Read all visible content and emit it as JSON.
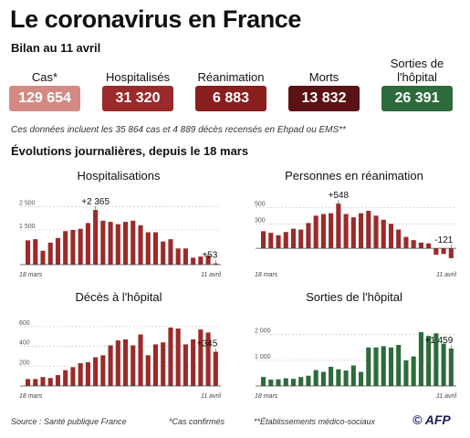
{
  "title": "Le coronavirus en France",
  "subtitle": "Bilan au 11 avril",
  "stats": [
    {
      "label": "Cas*",
      "value": "129 654",
      "color": "#d48a84"
    },
    {
      "label": "Hospitalisés",
      "value": "31 320",
      "color": "#9c2a2a"
    },
    {
      "label": "Réanimation",
      "value": "6 883",
      "color": "#8a1d1d"
    },
    {
      "label": "Morts",
      "value": "13 832",
      "color": "#5a1215"
    },
    {
      "label": "Sorties de l'hôpital",
      "value": "26 391",
      "color": "#2d6b3c"
    }
  ],
  "note": "Ces données incluent les 35 864 cas et 4 889 décès recensés en Ehpad ou EMS**",
  "section_title": "Évolutions journalières, depuis le 18 mars",
  "footer": {
    "source": "Source : Santé publique France",
    "cas_note": "*Cas confirmés",
    "ems_note": "**Établissements médico-sociaux",
    "copyright": "©",
    "agency": "AFP"
  },
  "chart_data": [
    {
      "type": "bar",
      "title": "Hospitalisations",
      "color": "#9c2a2a",
      "x_start_label": "18 mars",
      "x_end_label": "11 avril",
      "ylim": [
        0,
        3000
      ],
      "yticks": [
        1500,
        2500
      ],
      "ytick_labels": [
        "1 500",
        "2 500"
      ],
      "values": [
        1050,
        1100,
        600,
        950,
        1150,
        1450,
        1500,
        1550,
        1800,
        2365,
        1900,
        1850,
        1750,
        1850,
        1900,
        1700,
        1400,
        1400,
        1000,
        1100,
        700,
        700,
        300,
        350,
        400,
        53
      ],
      "annotations": [
        {
          "index": 9,
          "text": "+2 365"
        },
        {
          "index": 25,
          "text": "+53"
        }
      ]
    },
    {
      "type": "bar",
      "title": "Personnes en réanimation",
      "color": "#9c2a2a",
      "x_start_label": "18 mars",
      "x_end_label": "11 avril",
      "ylim": [
        -200,
        650
      ],
      "yticks": [
        300,
        500
      ],
      "ytick_labels": [
        "300",
        "500"
      ],
      "values": [
        210,
        190,
        160,
        200,
        240,
        230,
        310,
        400,
        420,
        430,
        548,
        420,
        380,
        430,
        460,
        400,
        350,
        300,
        230,
        140,
        100,
        70,
        60,
        -80,
        -70,
        -121
      ],
      "annotations": [
        {
          "index": 10,
          "text": "+548"
        },
        {
          "index": 25,
          "text": "-121"
        }
      ]
    },
    {
      "type": "bar",
      "title": "Décès à l'hôpital",
      "color": "#9c2a2a",
      "x_start_label": "18 mars",
      "x_end_label": "11 avril",
      "ylim": [
        0,
        700
      ],
      "yticks": [
        200,
        400,
        600
      ],
      "ytick_labels": [
        "200",
        "400",
        "600"
      ],
      "values": [
        70,
        70,
        90,
        80,
        110,
        160,
        190,
        230,
        240,
        290,
        310,
        410,
        460,
        470,
        410,
        520,
        310,
        420,
        440,
        590,
        580,
        420,
        470,
        570,
        540,
        345
      ],
      "annotations": [
        {
          "index": 25,
          "text": "+345"
        }
      ]
    },
    {
      "type": "bar",
      "title": "Sorties de l'hôpital",
      "color": "#2d6b3c",
      "x_start_label": "18 mars",
      "x_end_label": "11 avril",
      "ylim": [
        0,
        2700
      ],
      "yticks": [
        1000,
        2000
      ],
      "ytick_labels": [
        "1 000",
        "2 000"
      ],
      "values": [
        350,
        250,
        260,
        300,
        280,
        350,
        400,
        620,
        550,
        750,
        650,
        600,
        800,
        550,
        1500,
        1500,
        1550,
        1500,
        1600,
        1000,
        1150,
        2100,
        1950,
        2050,
        1650,
        1459
      ],
      "annotations": [
        {
          "index": 25,
          "text": "+1 459"
        }
      ]
    }
  ]
}
